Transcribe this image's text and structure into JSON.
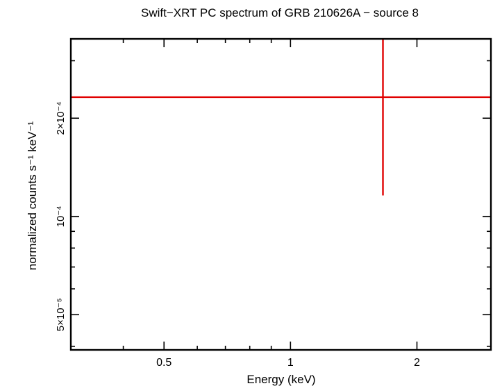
{
  "chart_data": {
    "type": "scatter",
    "title": "Swift−XRT PC spectrum of GRB 210626A − source 8",
    "xlabel": "Energy (keV)",
    "ylabel": "normalized counts s⁻¹ keV⁻¹",
    "x_scale": "log",
    "y_scale": "log",
    "xlim": [
      0.3,
      3.0
    ],
    "ylim": [
      3.9e-05,
      0.00035
    ],
    "x_ticks": [
      {
        "value": 0.5,
        "label": "0.5"
      },
      {
        "value": 1,
        "label": "1"
      },
      {
        "value": 2,
        "label": "2"
      }
    ],
    "y_ticks": [
      {
        "value": 5e-05,
        "label": "5×10⁻⁵"
      },
      {
        "value": 0.0001,
        "label": "10⁻⁴"
      },
      {
        "value": 0.0002,
        "label": "2×10⁻⁴"
      }
    ],
    "series": [
      {
        "color": "#e00000",
        "points": [
          {
            "x": 1.66,
            "y": 0.000232,
            "x_low": 0.3,
            "x_high": 3.0,
            "y_low": 0.000116,
            "y_high": 0.00035
          }
        ]
      }
    ]
  }
}
